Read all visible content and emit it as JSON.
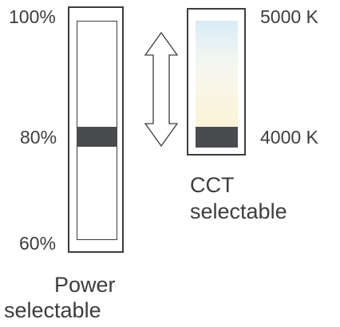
{
  "power": {
    "top_label": "100%",
    "mid_label": "80%",
    "bottom_label": "60%",
    "caption_line1": "Power",
    "caption_line2": "selectable",
    "selected_level_percent": 80
  },
  "cct": {
    "top_label": "5000 K",
    "bottom_label": "4000 K",
    "caption_line1": "CCT",
    "caption_line2": "selectable",
    "selected_value": "4000 K",
    "gradient_colors": [
      "#d8ecf7",
      "#f4f7f1",
      "#fbf5df",
      "#fdf1d0"
    ]
  },
  "colors": {
    "line": "#3d3d3d",
    "handle": "#4a4b4e"
  },
  "icons": {
    "double_arrow": "double-headed-vertical-arrow-icon"
  }
}
